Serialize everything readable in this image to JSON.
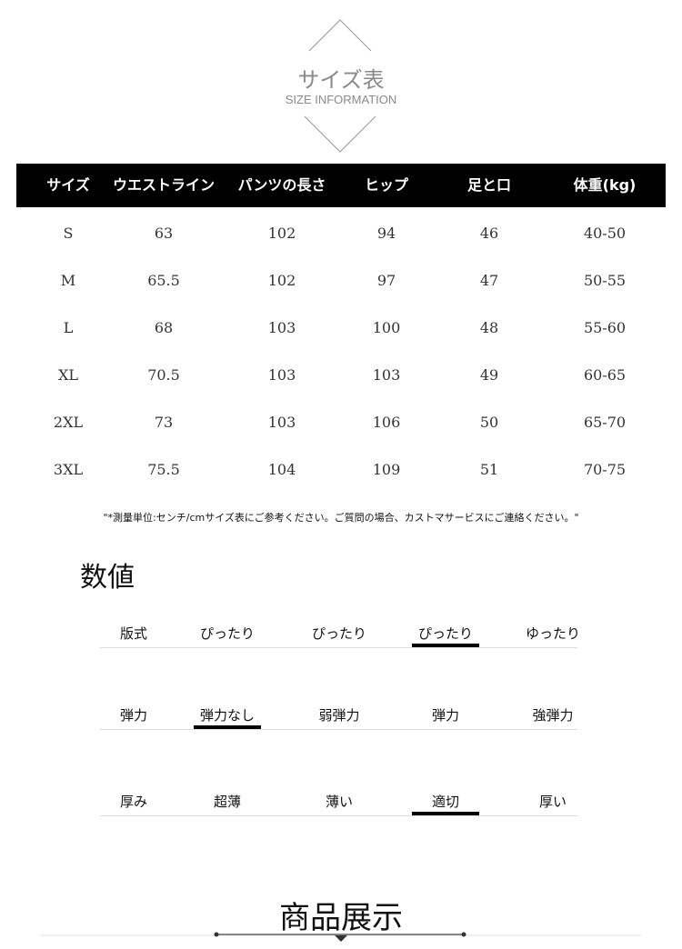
{
  "header": {
    "title": "サイズ表",
    "subtitle": "SIZE INFORMATION"
  },
  "table": {
    "columns": [
      "サイズ",
      "ウエストライン",
      "パンツの長さ",
      "ヒップ",
      "足と口",
      "体重(kg)"
    ],
    "rows": [
      [
        "S",
        "63",
        "102",
        "94",
        "46",
        "40-50"
      ],
      [
        "M",
        "65.5",
        "102",
        "97",
        "47",
        "50-55"
      ],
      [
        "L",
        "68",
        "103",
        "100",
        "48",
        "55-60"
      ],
      [
        "XL",
        "70.5",
        "103",
        "103",
        "49",
        "60-65"
      ],
      [
        "2XL",
        "73",
        "103",
        "106",
        "50",
        "65-70"
      ],
      [
        "3XL",
        "75.5",
        "104",
        "109",
        "51",
        "70-75"
      ]
    ]
  },
  "note": "\"*測量単位:センチ/cmサイズ表にご参考ください。ご質問の場合、カストマサービスにご連絡ください。\"",
  "values_section": {
    "title": "数値",
    "attributes": [
      {
        "label": "版式",
        "options": [
          "ぴったり",
          "ぴったり",
          "ぴったり",
          "ゆったり"
        ],
        "selected_index": 2
      },
      {
        "label": "弾力",
        "options": [
          "弾力なし",
          "弱弾力",
          "弾力",
          "強弾力"
        ],
        "selected_index": 0
      },
      {
        "label": "厚み",
        "options": [
          "超薄",
          "薄い",
          "適切",
          "厚い"
        ],
        "selected_index": 2
      }
    ]
  },
  "product_section": {
    "title": "商品展示"
  }
}
